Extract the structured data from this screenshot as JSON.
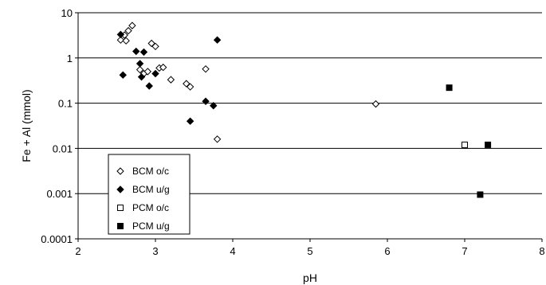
{
  "chart_data": {
    "type": "scatter",
    "title": "",
    "xlabel": "pH",
    "ylabel": "Fe + Al  (mmol)",
    "xlim": [
      2,
      8
    ],
    "ylim": [
      0.0001,
      10
    ],
    "yscale": "log",
    "grid": "horizontal",
    "legend_position": "bottom-left",
    "x_tick_labels": [
      "2",
      "3",
      "4",
      "5",
      "6",
      "7",
      "8"
    ],
    "y_tick_labels": [
      "0.0001",
      "0.001",
      "0.01",
      "0.1",
      "1",
      "10"
    ],
    "series": [
      {
        "name": "BCM o/c",
        "marker": "diamond-open",
        "color": "#000000",
        "points": [
          [
            2.55,
            2.5
          ],
          [
            2.6,
            3.2
          ],
          [
            2.62,
            2.4
          ],
          [
            2.65,
            4.0
          ],
          [
            2.7,
            5.2
          ],
          [
            2.8,
            0.55
          ],
          [
            2.85,
            0.45
          ],
          [
            2.9,
            0.5
          ],
          [
            2.95,
            2.1
          ],
          [
            3.0,
            1.8
          ],
          [
            3.05,
            0.6
          ],
          [
            3.1,
            0.62
          ],
          [
            3.2,
            0.33
          ],
          [
            3.4,
            0.27
          ],
          [
            3.45,
            0.23
          ],
          [
            3.65,
            0.57
          ],
          [
            3.8,
            0.016
          ],
          [
            5.85,
            0.096
          ]
        ]
      },
      {
        "name": "BCM u/g",
        "marker": "diamond-filled",
        "color": "#000000",
        "points": [
          [
            2.55,
            3.3
          ],
          [
            2.58,
            0.42
          ],
          [
            2.75,
            1.4
          ],
          [
            2.8,
            0.75
          ],
          [
            2.82,
            0.38
          ],
          [
            2.85,
            1.35
          ],
          [
            2.92,
            0.24
          ],
          [
            3.0,
            0.45
          ],
          [
            3.45,
            0.04
          ],
          [
            3.65,
            0.11
          ],
          [
            3.75,
            0.088
          ],
          [
            3.8,
            2.5
          ]
        ]
      },
      {
        "name": "PCM o/c",
        "marker": "square-open",
        "color": "#000000",
        "points": [
          [
            7.0,
            0.012
          ]
        ]
      },
      {
        "name": "PCM u/g",
        "marker": "square-filled",
        "color": "#000000",
        "points": [
          [
            6.8,
            0.22
          ],
          [
            7.2,
            0.00095
          ],
          [
            7.3,
            0.012
          ]
        ]
      }
    ]
  }
}
